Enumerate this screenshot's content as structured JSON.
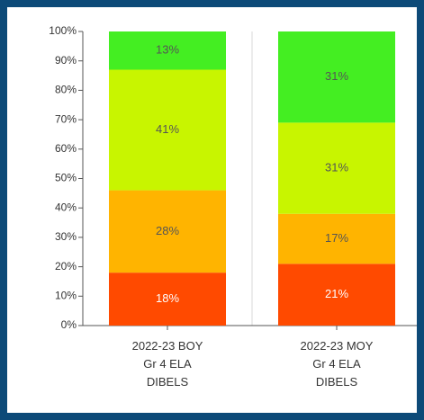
{
  "chart_data": {
    "type": "stacked-bar",
    "categories": [
      "2022-23 BOY\nGr 4 ELA\nDIBELS",
      "2022-23 MOY\nGr 4 ELA\nDIBELS"
    ],
    "series": [
      {
        "color": "#ff4a00",
        "label_color": "#ffffff",
        "values": [
          18,
          21
        ],
        "value_labels": [
          "18%",
          "21%"
        ]
      },
      {
        "color": "#ffb400",
        "label_color": "#555555",
        "values": [
          28,
          17
        ],
        "value_labels": [
          "28%",
          "17%"
        ]
      },
      {
        "color": "#c8f500",
        "label_color": "#555555",
        "values": [
          41,
          31
        ],
        "value_labels": [
          "41%",
          "31%"
        ]
      },
      {
        "color": "#44ee22",
        "label_color": "#555555",
        "values": [
          13,
          31
        ],
        "value_labels": [
          "13%",
          "31%"
        ]
      }
    ],
    "ylim": [
      0,
      100
    ],
    "yticks": [
      {
        "value": 0,
        "label": "0%"
      },
      {
        "value": 10,
        "label": "10%"
      },
      {
        "value": 20,
        "label": "20%"
      },
      {
        "value": 30,
        "label": "30%"
      },
      {
        "value": 40,
        "label": "40%"
      },
      {
        "value": 50,
        "label": "50%"
      },
      {
        "value": 60,
        "label": "60%"
      },
      {
        "value": 70,
        "label": "70%"
      },
      {
        "value": 80,
        "label": "80%"
      },
      {
        "value": 90,
        "label": "90%"
      },
      {
        "value": 100,
        "label": "100%"
      }
    ]
  }
}
